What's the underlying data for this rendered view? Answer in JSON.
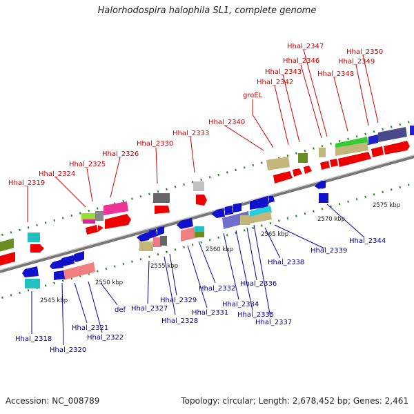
{
  "title": "Halorhodospira halophila SL1, complete genome",
  "footer": {
    "accession": "Accession: NC_008789",
    "topology": "Topology: circular; Length: 2,678,452 bp; Genes: 2,461"
  },
  "colors": {
    "forward_label": "#cc0000",
    "reverse_label": "#000099",
    "backbone": "#888888",
    "tick_dots": "#228b22"
  },
  "kbp_labels": [
    {
      "text": "2545 kbp",
      "pos": 2545
    },
    {
      "text": "2550 kbp",
      "pos": 2550
    },
    {
      "text": "2555 kbp",
      "pos": 2555
    },
    {
      "text": "2560 kbp",
      "pos": 2560
    },
    {
      "text": "2565 kbp",
      "pos": 2565
    },
    {
      "text": "2570 kbp",
      "pos": 2570
    },
    {
      "text": "2575 kbp",
      "pos": 2575
    }
  ],
  "forward_genes": [
    "Hhal_2319",
    "Hhal_2324",
    "Hhal_2325",
    "Hhal_2326",
    "Hhal_2330",
    "Hhal_2333",
    "Hhal_2340",
    "groEL",
    "Hhal_2342",
    "Hhal_2343",
    "Hhal_2346",
    "Hhal_2347",
    "Hhal_2348",
    "Hhal_2349",
    "Hhal_2350"
  ],
  "reverse_genes": [
    "Hhal_2318",
    "Hhal_2320",
    "Hhal_2321",
    "Hhal_2322",
    "def",
    "Hhal_2327",
    "Hhal_2328",
    "Hhal_2329",
    "Hhal_2331",
    "Hhal_2332",
    "Hhal_2334",
    "Hhal_2335",
    "Hhal_2336",
    "Hhal_2337",
    "Hhal_2338",
    "Hhal_2339",
    "Hhal_2344"
  ]
}
